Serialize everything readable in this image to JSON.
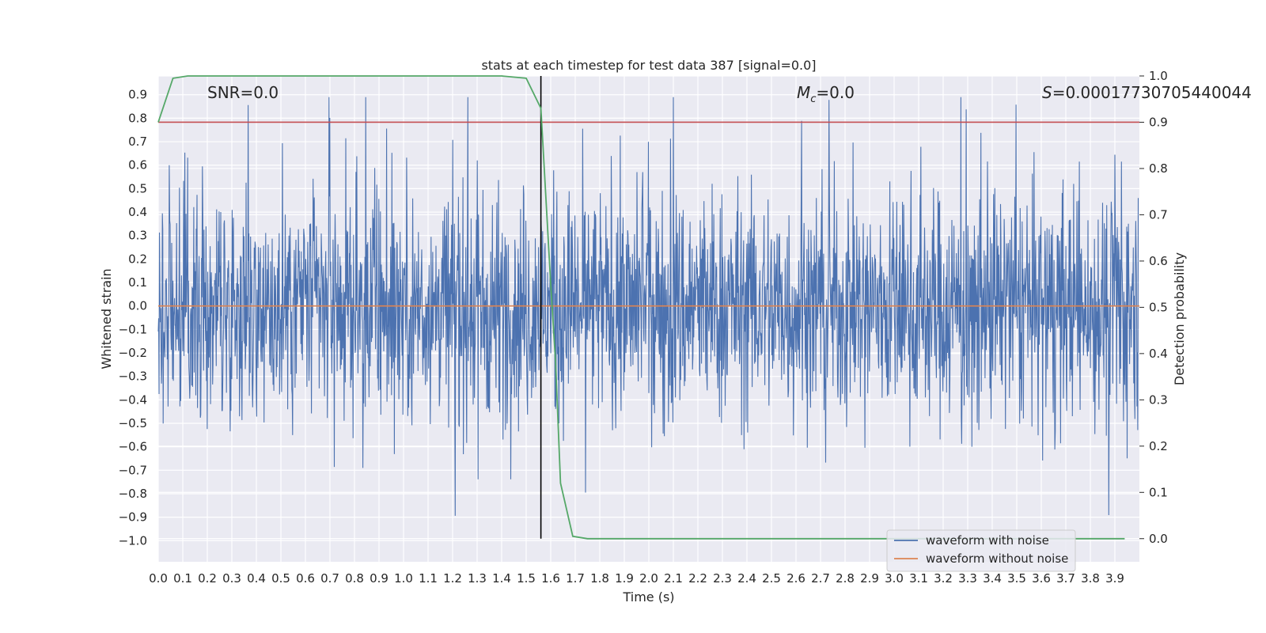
{
  "chart_data": {
    "type": "line",
    "title": "stats at each timestep for test data 387 [signal=0.0]",
    "xlabel": "Time (s)",
    "ylabel_left": "Whitened strain",
    "ylabel_right": "Detection probability",
    "xlim": [
      0.0,
      4.0
    ],
    "ylim_left": [
      -1.09,
      0.98
    ],
    "ylim_right": [
      -0.05,
      1.0
    ],
    "x_ticks": [
      "0.0",
      "0.1",
      "0.2",
      "0.3",
      "0.4",
      "0.5",
      "0.6",
      "0.7",
      "0.8",
      "0.9",
      "1.0",
      "1.1",
      "1.2",
      "1.3",
      "1.4",
      "1.5",
      "1.6",
      "1.7",
      "1.8",
      "1.9",
      "2.0",
      "2.1",
      "2.2",
      "2.3",
      "2.4",
      "2.5",
      "2.6",
      "2.7",
      "2.8",
      "2.9",
      "3.0",
      "3.1",
      "3.2",
      "3.3",
      "3.4",
      "3.5",
      "3.6",
      "3.7",
      "3.8",
      "3.9"
    ],
    "y_ticks_left": [
      "0.9",
      "0.8",
      "0.7",
      "0.6",
      "0.5",
      "0.4",
      "0.3",
      "0.2",
      "0.1",
      "0.0",
      "−0.1",
      "−0.2",
      "−0.3",
      "−0.4",
      "−0.5",
      "−0.6",
      "−0.7",
      "−0.8",
      "−0.9",
      "−1.0"
    ],
    "y_ticks_right": [
      "1.0",
      "0.9",
      "0.8",
      "0.7",
      "0.6",
      "0.5",
      "0.4",
      "0.3",
      "0.2",
      "0.1",
      "0.0"
    ],
    "annotations": {
      "snr": "SNR=0.0",
      "mc_symbol": "M",
      "mc_sub": "c",
      "mc_value": "=0.0",
      "s_symbol": "S",
      "s_value": "=0.00017730705440044"
    },
    "legend": {
      "placement": "lower-right",
      "entries": [
        "waveform with noise",
        "waveform without noise"
      ]
    },
    "series": [
      {
        "name": "waveform with noise",
        "axis": "left",
        "color": "#4c72b0",
        "description": "whitened noisy strain, dense oscillation between about -1.0 and 0.89",
        "min": -1.0,
        "max": 0.89
      },
      {
        "name": "waveform without noise",
        "axis": "left",
        "color": "#dd8452",
        "values_constant": 0.0
      },
      {
        "axis": "right",
        "color": "#55a868",
        "x": [
          0.0,
          0.06,
          0.12,
          0.2,
          0.4,
          0.8,
          1.2,
          1.4,
          1.5,
          1.56,
          1.6,
          1.62,
          1.64,
          1.69,
          1.75,
          2.0,
          3.0,
          3.94
        ],
        "values": [
          0.9,
          0.995,
          1.0,
          1.0,
          1.0,
          1.0,
          1.0,
          1.0,
          0.995,
          0.93,
          0.55,
          0.38,
          0.12,
          0.005,
          0.0,
          0.0,
          0.0,
          0.0
        ]
      }
    ],
    "threshold": {
      "axis": "right",
      "value": 0.9,
      "color": "#c44e52"
    },
    "vline": {
      "x": 1.56,
      "color": "#000000"
    },
    "colors": {
      "plot_bg": "#eaeaf2",
      "grid": "#ffffff",
      "noise": "#4c72b0",
      "clean": "#dd8452",
      "prob": "#55a868",
      "threshold": "#c44e52"
    }
  }
}
